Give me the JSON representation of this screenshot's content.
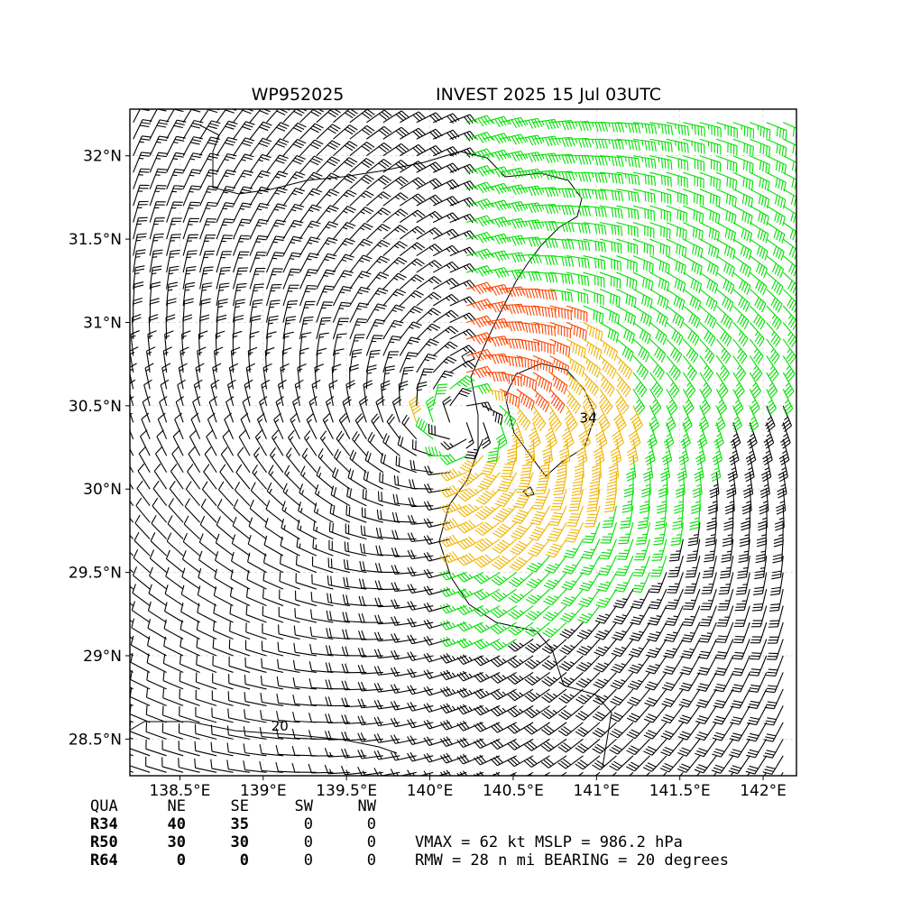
{
  "chart_data": {
    "type": "wind-barb-map",
    "title_left": "WP952025",
    "title_right": "INVEST 2025 15 Jul 03UTC",
    "xlim": [
      138.2,
      142.2
    ],
    "ylim": [
      28.28,
      32.28
    ],
    "x_ticks": [
      {
        "value": 138.5,
        "label": "138.5°E"
      },
      {
        "value": 139.0,
        "label": "139°E"
      },
      {
        "value": 139.5,
        "label": "139.5°E"
      },
      {
        "value": 140.0,
        "label": "140°E"
      },
      {
        "value": 140.5,
        "label": "140.5°E"
      },
      {
        "value": 141.0,
        "label": "141°E"
      },
      {
        "value": 141.5,
        "label": "141.5°E"
      },
      {
        "value": 142.0,
        "label": "142°E"
      }
    ],
    "y_ticks": [
      {
        "value": 28.5,
        "label": "28.5°N"
      },
      {
        "value": 29.0,
        "label": "29°N"
      },
      {
        "value": 29.5,
        "label": "29.5°N"
      },
      {
        "value": 30.0,
        "label": "30°N"
      },
      {
        "value": 30.5,
        "label": "30.5°N"
      },
      {
        "value": 31.0,
        "label": "31°N"
      },
      {
        "value": 31.5,
        "label": "31.5°N"
      },
      {
        "value": 32.0,
        "label": "32°N"
      }
    ],
    "grid": true,
    "storm_center": {
      "lon": 140.2,
      "lat": 30.4
    },
    "rmw_nmi": 28,
    "bearing_deg": 20,
    "contour_labels": [
      {
        "text": "20",
        "lon": 139.1,
        "lat": 28.55
      },
      {
        "text": "34",
        "lon": 140.95,
        "lat": 30.4
      }
    ],
    "barb_colors": {
      "calm": "#000000",
      "r34": "#00e000",
      "r50": "#f0b400",
      "r64": "#ff4400"
    }
  },
  "wind_radii": {
    "header": [
      "QUA",
      "NE",
      "SE",
      "SW",
      "NW"
    ],
    "rows": [
      {
        "label": "R34",
        "values": [
          "40",
          "35",
          "0",
          "0"
        ]
      },
      {
        "label": "R50",
        "values": [
          "30",
          "30",
          "0",
          "0"
        ]
      },
      {
        "label": "R64",
        "values": [
          "0",
          "0",
          "0",
          "0"
        ]
      }
    ]
  },
  "summary": {
    "line1": "VMAX =  62 kt MSLP = 986.2 hPa",
    "line2": "RMW =  28 n mi BEARING =  20 degrees"
  }
}
